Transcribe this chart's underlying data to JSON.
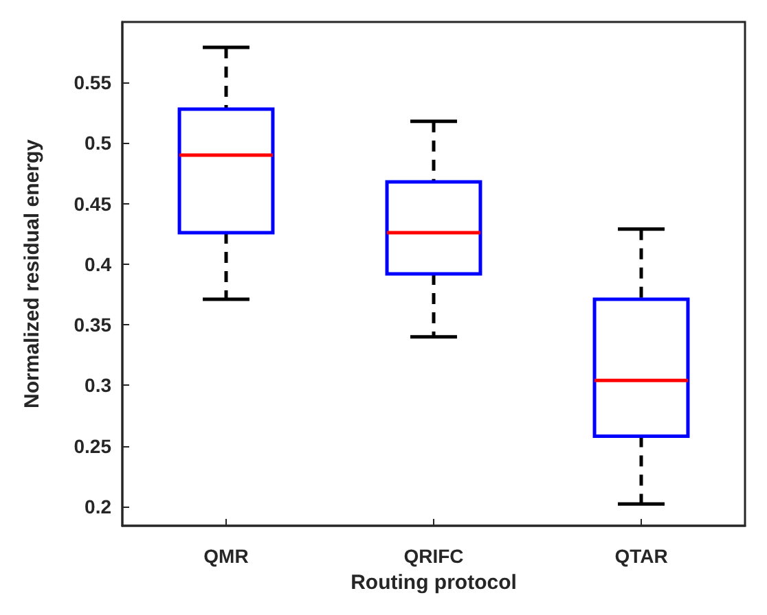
{
  "chart_data": {
    "type": "box",
    "xlabel": "Routing protocol",
    "ylabel": "Normalized residual energy",
    "categories": [
      "QMR",
      "QRIFC",
      "QTAR"
    ],
    "ylim": [
      0.184,
      0.6
    ],
    "yticks": [
      0.2,
      0.25,
      0.3,
      0.35,
      0.4,
      0.45,
      0.5,
      0.55
    ],
    "grid": false,
    "line_style": "dashed",
    "series": [
      {
        "color": "#0000ff",
        "boxes": [
          {
            "low": 0.371,
            "q1": 0.426,
            "median": 0.49,
            "q3": 0.528,
            "high": 0.579
          },
          {
            "low": 0.34,
            "q1": 0.392,
            "median": 0.426,
            "q3": 0.468,
            "high": 0.518
          },
          {
            "low": 0.202,
            "q1": 0.258,
            "median": 0.304,
            "q3": 0.371,
            "high": 0.429
          }
        ]
      }
    ]
  }
}
